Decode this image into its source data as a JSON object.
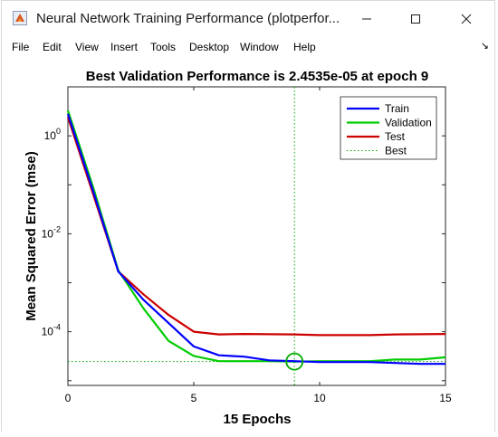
{
  "window": {
    "title": "Neural Network Training Performance (plotperfor...",
    "icon": "matlab-figure-icon",
    "controls": [
      "minimize-icon",
      "maximize-icon",
      "close-icon"
    ]
  },
  "menu": {
    "items": [
      "File",
      "Edit",
      "View",
      "Insert",
      "Tools",
      "Desktop",
      "Window",
      "Help"
    ],
    "dock_icon": "dock-arrow-icon"
  },
  "chart_data": {
    "type": "line",
    "title": "Best Validation Performance is 2.4535e-05 at epoch 9",
    "xlabel": "15 Epochs",
    "ylabel": "Mean Squared Error  (mse)",
    "yscale": "log",
    "xlim": [
      0,
      15
    ],
    "ylim": [
      8e-06,
      10
    ],
    "xticks": [
      0,
      5,
      10,
      15
    ],
    "yticks": [
      {
        "value": 1,
        "base": "10",
        "exp": "0"
      },
      {
        "value": 0.01,
        "base": "10",
        "exp": "-2"
      },
      {
        "value": 0.0001,
        "base": "10",
        "exp": "-4"
      }
    ],
    "grid": false,
    "legend_position": "top-right",
    "series": [
      {
        "name": "Train",
        "color": "#0000ff",
        "x": [
          0,
          1,
          2,
          3,
          4,
          5,
          6,
          7,
          8,
          9,
          10,
          11,
          12,
          13,
          14,
          15
        ],
        "y": [
          2.8,
          0.075,
          0.0017,
          0.00045,
          0.00015,
          5e-05,
          3.3e-05,
          3.1e-05,
          2.6e-05,
          2.5e-05,
          2.4e-05,
          2.4e-05,
          2.4e-05,
          2.3e-05,
          2.2e-05,
          2.2e-05
        ]
      },
      {
        "name": "Validation",
        "color": "#00cc00",
        "x": [
          0,
          1,
          2,
          3,
          4,
          5,
          6,
          7,
          8,
          9,
          10,
          11,
          12,
          13,
          14,
          15
        ],
        "y": [
          3.3,
          0.09,
          0.0018,
          0.0003,
          6.5e-05,
          3.2e-05,
          2.5e-05,
          2.5e-05,
          2.5e-05,
          2.45e-05,
          2.5e-05,
          2.5e-05,
          2.5e-05,
          2.7e-05,
          2.7e-05,
          3e-05
        ]
      },
      {
        "name": "Test",
        "color": "#cc0000",
        "x": [
          0,
          1,
          2,
          3,
          4,
          5,
          6,
          7,
          8,
          9,
          10,
          11,
          12,
          13,
          14,
          15
        ],
        "y": [
          2.4,
          0.065,
          0.0017,
          0.00058,
          0.00022,
          0.0001,
          8.8e-05,
          9e-05,
          8.9e-05,
          8.8e-05,
          8.5e-05,
          8.5e-05,
          8.5e-05,
          8.8e-05,
          8.9e-05,
          9e-05
        ]
      },
      {
        "name": "Best",
        "color": "#00aa00",
        "style": "dotted",
        "best_epoch": 9,
        "best_value": 2.4535e-05
      }
    ]
  }
}
